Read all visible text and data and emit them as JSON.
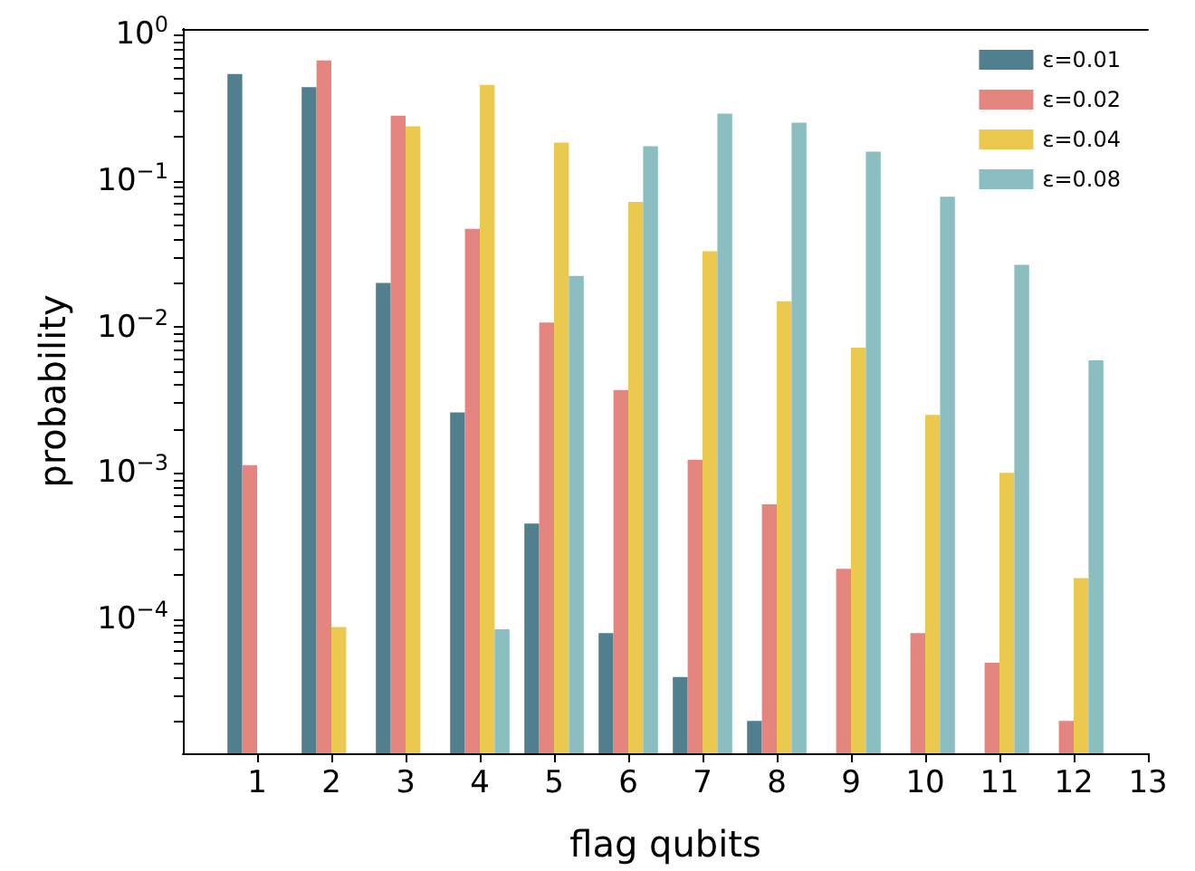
{
  "chart_data": {
    "type": "bar",
    "xlabel": "flag qubits",
    "ylabel": "probability",
    "x": [
      1,
      2,
      3,
      4,
      5,
      6,
      7,
      8,
      9,
      10,
      11,
      12
    ],
    "series": [
      {
        "name": "ε=0.01",
        "color": "#527f8e",
        "values": [
          0.54,
          0.44,
          0.02,
          0.0026,
          0.00045,
          8e-05,
          4e-05,
          2e-05,
          null,
          null,
          null,
          null
        ]
      },
      {
        "name": "ε=0.02",
        "color": "#e58580",
        "values": [
          0.00113,
          0.67,
          0.28,
          0.047,
          0.0107,
          0.0037,
          0.00123,
          0.00061,
          0.00022,
          8e-05,
          5e-05,
          2e-05
        ]
      },
      {
        "name": "ε=0.04",
        "color": "#ebc94e",
        "values": [
          null,
          8.8e-05,
          0.237,
          0.455,
          0.183,
          0.072,
          0.033,
          0.015,
          0.0072,
          0.0025,
          0.001,
          0.00019
        ]
      },
      {
        "name": "ε=0.08",
        "color": "#8abec1",
        "values": [
          null,
          null,
          null,
          8.5e-05,
          0.0224,
          0.173,
          0.289,
          0.251,
          0.159,
          0.078,
          0.0266,
          0.0059
        ]
      }
    ],
    "log": "y",
    "grid": false,
    "legend": "top right",
    "xlim": [
      0,
      13
    ],
    "xticks": [
      1,
      2,
      3,
      4,
      5,
      6,
      7,
      8,
      9,
      10,
      11,
      12,
      13
    ],
    "ylim": [
      1.2e-05,
      1.1
    ],
    "yticks": [
      {
        "value": 0.0001,
        "label": "10$^{−4}$"
      },
      {
        "value": 0.001,
        "label": "10$^{−3}$"
      },
      {
        "value": 0.01,
        "label": "10$^{−2}$"
      },
      {
        "value": 0.1,
        "label": "10$^{−1}$"
      },
      {
        "value": 1,
        "label": "10$^{0}$"
      },
      {
        "value": 2e-05,
        "label": null
      },
      {
        "value": 3e-05,
        "label": null
      },
      {
        "value": 4e-05,
        "label": null
      },
      {
        "value": 5e-05,
        "label": null
      },
      {
        "value": 6e-05,
        "label": null
      },
      {
        "value": 7e-05,
        "label": null
      },
      {
        "value": 8e-05,
        "label": null
      },
      {
        "value": 9e-05,
        "label": null
      },
      {
        "value": 0.0002,
        "label": null
      },
      {
        "value": 0.0003,
        "label": null
      },
      {
        "value": 0.0004,
        "label": null
      },
      {
        "value": 0.0005,
        "label": null
      },
      {
        "value": 0.0006,
        "label": null
      },
      {
        "value": 0.0007,
        "label": null
      },
      {
        "value": 0.0008,
        "label": null
      },
      {
        "value": 0.0009,
        "label": null
      },
      {
        "value": 0.002,
        "label": null
      },
      {
        "value": 0.003,
        "label": null
      },
      {
        "value": 0.004,
        "label": null
      },
      {
        "value": 0.005,
        "label": null
      },
      {
        "value": 0.006,
        "label": null
      },
      {
        "value": 0.007,
        "label": null
      },
      {
        "value": 0.008,
        "label": null
      },
      {
        "value": 0.009,
        "label": null
      },
      {
        "value": 0.02,
        "label": null
      },
      {
        "value": 0.03,
        "label": null
      },
      {
        "value": 0.04,
        "label": null
      },
      {
        "value": 0.05,
        "label": null
      },
      {
        "value": 0.06,
        "label": null
      },
      {
        "value": 0.07,
        "label": null
      },
      {
        "value": 0.08,
        "label": null
      },
      {
        "value": 0.09,
        "label": null
      },
      {
        "value": 0.2,
        "label": null
      },
      {
        "value": 0.3,
        "label": null
      },
      {
        "value": 0.4,
        "label": null
      },
      {
        "value": 0.5,
        "label": null
      },
      {
        "value": 0.6,
        "label": null
      },
      {
        "value": 0.7,
        "label": null
      },
      {
        "value": 0.8,
        "label": null
      },
      {
        "value": 0.9,
        "label": null
      }
    ]
  }
}
